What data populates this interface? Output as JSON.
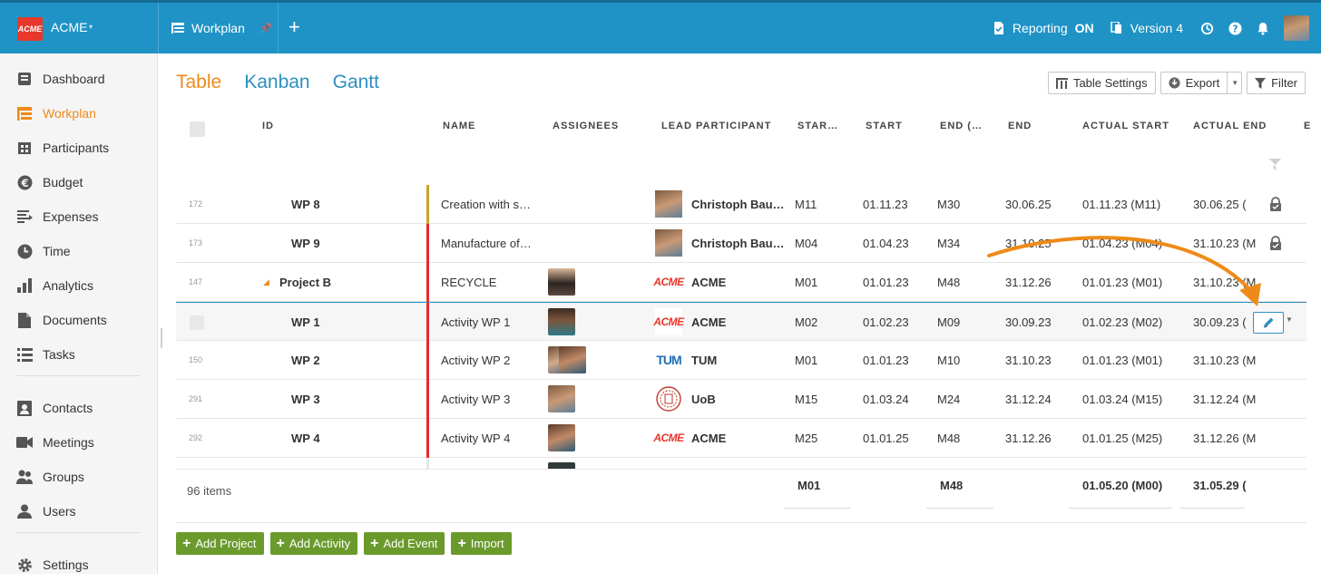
{
  "header": {
    "logo_text": "ACME",
    "app_name": "ACME",
    "tab_label": "Workplan",
    "reporting_label": "Reporting",
    "reporting_state": "ON",
    "version_label": "Version 4"
  },
  "sidebar": {
    "items": [
      {
        "label": "Dashboard",
        "icon": "dashboard-icon"
      },
      {
        "label": "Workplan",
        "icon": "workplan-icon",
        "active": true
      },
      {
        "label": "Participants",
        "icon": "participants-icon"
      },
      {
        "label": "Budget",
        "icon": "euro-icon"
      },
      {
        "label": "Expenses",
        "icon": "expenses-icon"
      },
      {
        "label": "Time",
        "icon": "clock-icon"
      },
      {
        "label": "Analytics",
        "icon": "bar-chart-icon"
      },
      {
        "label": "Documents",
        "icon": "document-icon"
      },
      {
        "label": "Tasks",
        "icon": "tasks-icon"
      },
      {
        "label": "Contacts",
        "icon": "contacts-icon"
      },
      {
        "label": "Meetings",
        "icon": "video-icon"
      },
      {
        "label": "Groups",
        "icon": "group-icon"
      },
      {
        "label": "Users",
        "icon": "user-icon"
      },
      {
        "label": "Settings",
        "icon": "gear-icon"
      }
    ]
  },
  "views": {
    "table": "Table",
    "kanban": "Kanban",
    "gantt": "Gantt"
  },
  "toolbar": {
    "table_settings": "Table Settings",
    "export": "Export",
    "filter": "Filter"
  },
  "columns": {
    "id": "ID",
    "name": "NAME",
    "assignees": "ASSIGNEES",
    "lead": "LEAD PARTICIPANT",
    "star": "STAR…",
    "start": "START",
    "end_m": "END (…",
    "end": "END",
    "actual_start": "ACTUAL START",
    "actual_end": "ACTUAL END",
    "extra": "E"
  },
  "rows": [
    {
      "num": "172",
      "id": "WP 8",
      "name": "Creation with s…",
      "lead": "Christoph Bau…",
      "star": "M11",
      "start": "01.11.23",
      "end_m": "M30",
      "end": "30.06.25",
      "actual_start": "01.11.23 (M11)",
      "actual_end": "30.06.25 (",
      "bar_color": "#c9a227"
    },
    {
      "num": "173",
      "id": "WP 9",
      "name": "Manufacture of…",
      "lead": "Christoph Bau…",
      "star": "M04",
      "start": "01.04.23",
      "end_m": "M34",
      "end": "31.10.25",
      "actual_start": "01.04.23 (M04)",
      "actual_end": "31.10.23 (M",
      "bar_color": "#e52a2a"
    },
    {
      "num": "147",
      "id": "Project B",
      "name": "RECYCLE",
      "lead": "ACME",
      "star": "M01",
      "start": "01.01.23",
      "end_m": "M48",
      "end": "31.12.26",
      "actual_start": "01.01.23 (M01)",
      "actual_end": "31.10.23 (M",
      "bar_color": "#e52a2a"
    },
    {
      "num": "",
      "id": "WP 1",
      "name": "Activity WP 1",
      "lead": "ACME",
      "star": "M02",
      "start": "01.02.23",
      "end_m": "M09",
      "end": "30.09.23",
      "actual_start": "01.02.23 (M02)",
      "actual_end": "30.09.23 (",
      "bar_color": "#e52a2a"
    },
    {
      "num": "150",
      "id": "WP 2",
      "name": "Activity WP 2",
      "lead": "TUM",
      "star": "M01",
      "start": "01.01.23",
      "end_m": "M10",
      "end": "31.10.23",
      "actual_start": "01.01.23 (M01)",
      "actual_end": "31.10.23 (M",
      "bar_color": "#e52a2a"
    },
    {
      "num": "291",
      "id": "WP 3",
      "name": "Activity WP 3",
      "lead": "UoB",
      "star": "M15",
      "start": "01.03.24",
      "end_m": "M24",
      "end": "31.12.24",
      "actual_start": "01.03.24 (M15)",
      "actual_end": "31.12.24 (M",
      "bar_color": "#e52a2a"
    },
    {
      "num": "292",
      "id": "WP 4",
      "name": "Activity WP 4",
      "lead": "ACME",
      "star": "M25",
      "start": "01.01.25",
      "end_m": "M48",
      "end": "31.12.26",
      "actual_start": "01.01.25 (M25)",
      "actual_end": "31.12.26 (M",
      "bar_color": "#e52a2a"
    }
  ],
  "footer": {
    "items": "96 items",
    "star": "M01",
    "end_m": "M48",
    "actual_start": "01.05.20 (M00)",
    "actual_end": "31.05.29 ("
  },
  "actions": {
    "add_project": "Add Project",
    "add_activity": "Add Activity",
    "add_event": "Add Event",
    "import": "Import"
  },
  "colors": {
    "accent": "#ef8a18",
    "link": "#2e8fc0",
    "topbar": "#1f93c6",
    "brand_red": "#e8372b",
    "green": "#6b9a2c"
  }
}
